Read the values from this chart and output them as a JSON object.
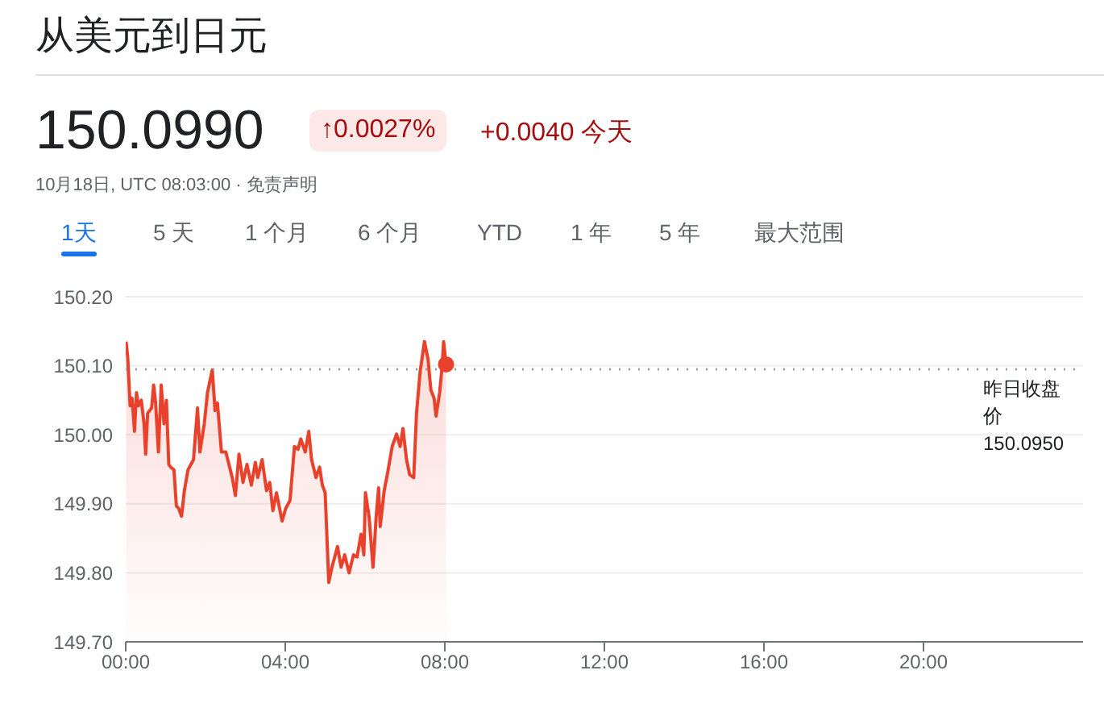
{
  "chart_data": {
    "type": "area",
    "title": "从美元到日元",
    "annotations": [
      "150.0990",
      "↑0.0027%",
      "+0.0040 今天",
      "10月18日, UTC 08:03:00 · 免责声明",
      "1天",
      "5 天",
      "1 个月",
      "6 个月",
      "YTD",
      "1 年",
      "5 年",
      "最大范围"
    ],
    "x": [
      0.01,
      0.05,
      0.11,
      0.16,
      0.22,
      0.27,
      0.32,
      0.39,
      0.46,
      0.5,
      0.55,
      0.65,
      0.7,
      0.75,
      0.82,
      0.89,
      0.96,
      1.02,
      1.08,
      1.13,
      1.21,
      1.27,
      1.33,
      1.4,
      1.47,
      1.56,
      1.7,
      1.8,
      1.86,
      1.97,
      2.05,
      2.17,
      2.24,
      2.3,
      2.4,
      2.51,
      2.67,
      2.75,
      2.84,
      2.94,
      3.04,
      3.15,
      3.25,
      3.31,
      3.42,
      3.53,
      3.61,
      3.69,
      3.78,
      3.92,
      4.01,
      4.12,
      4.23,
      4.32,
      4.39,
      4.5,
      4.59,
      4.66,
      4.77,
      4.86,
      4.93,
      5.0,
      5.09,
      5.17,
      5.31,
      5.4,
      5.49,
      5.6,
      5.71,
      5.8,
      5.9,
      5.97,
      6.01,
      6.1,
      6.2,
      6.28,
      6.34,
      6.38,
      6.48,
      6.57,
      6.68,
      6.79,
      6.88,
      6.95,
      7.04,
      7.12,
      7.22,
      7.29,
      7.38,
      7.49,
      7.58,
      7.65,
      7.73,
      7.78,
      7.87,
      7.93,
      7.97,
      8.03
    ],
    "series": [
      {
        "color": "#e8412c",
        "values": [
          150.135,
          150.113,
          150.042,
          150.053,
          150.005,
          150.061,
          150.042,
          150.05,
          150.016,
          149.972,
          150.031,
          150.039,
          150.072,
          150.046,
          149.975,
          150.072,
          150.016,
          150.05,
          149.957,
          149.953,
          149.949,
          149.897,
          149.893,
          149.882,
          149.919,
          149.949,
          149.964,
          150.039,
          149.975,
          150.016,
          150.061,
          150.094,
          150.035,
          150.046,
          149.975,
          149.975,
          149.938,
          149.912,
          149.972,
          149.931,
          149.957,
          149.927,
          149.96,
          149.938,
          149.964,
          149.919,
          149.931,
          149.89,
          149.916,
          149.875,
          149.893,
          149.905,
          149.983,
          149.979,
          149.994,
          149.975,
          150.005,
          149.964,
          149.938,
          149.953,
          149.927,
          149.916,
          149.786,
          149.808,
          149.838,
          149.808,
          149.826,
          149.8,
          149.826,
          149.823,
          149.856,
          149.826,
          149.916,
          149.882,
          149.808,
          149.882,
          149.923,
          149.867,
          149.919,
          149.946,
          149.983,
          150.001,
          149.983,
          150.009,
          149.964,
          149.942,
          149.938,
          150.031,
          150.091,
          150.135,
          150.109,
          150.065,
          150.053,
          150.027,
          150.061,
          150.098,
          150.135,
          150.102
        ]
      }
    ],
    "xlim": [
      0,
      24
    ],
    "xticks": [
      {
        "value": 0,
        "label": "00:00"
      },
      {
        "value": 4,
        "label": "04:00"
      },
      {
        "value": 8,
        "label": "08:00"
      },
      {
        "value": 12,
        "label": "12:00"
      },
      {
        "value": 16,
        "label": "16:00"
      },
      {
        "value": 20,
        "label": "20:00"
      }
    ],
    "ylim": [
      149.7,
      150.2
    ],
    "yticks": [
      {
        "value": 149.7,
        "label": "149.70"
      },
      {
        "value": 149.8,
        "label": "149.80"
      },
      {
        "value": 149.9,
        "label": "149.90"
      },
      {
        "value": 150.0,
        "label": "150.00"
      },
      {
        "value": 150.1,
        "label": "150.10"
      },
      {
        "value": 150.2,
        "label": "150.20"
      }
    ],
    "ref_lines": [
      {
        "axis": "y",
        "value": 150.095,
        "label": "昨日收盘价 150.0950",
        "color": "#9aa0a6",
        "line_style": "dotted"
      }
    ],
    "grid": "y"
  }
}
